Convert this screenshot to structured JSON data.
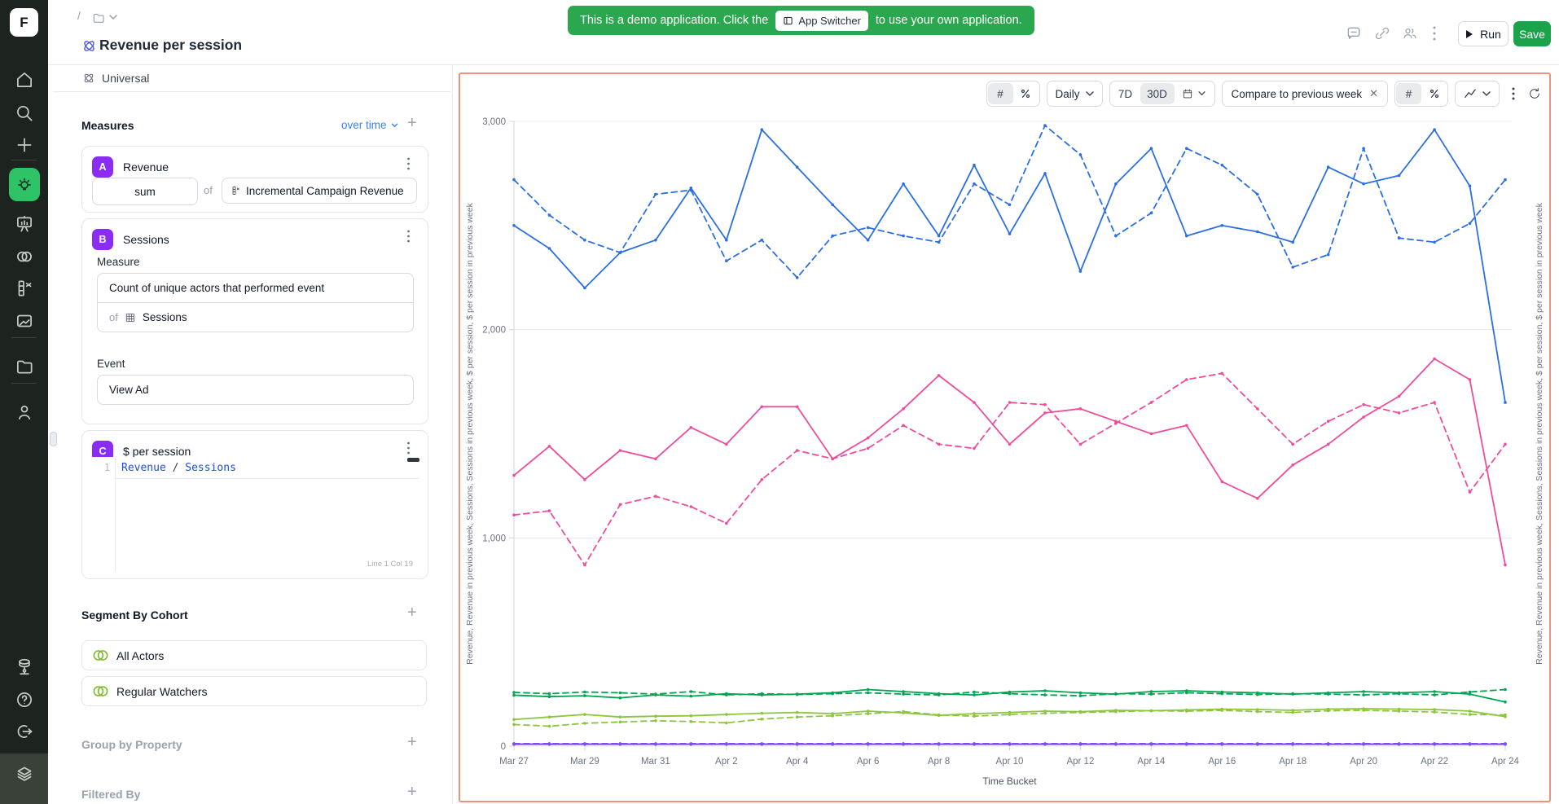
{
  "header": {
    "breadcrumb_separator": "/",
    "title": "Revenue per session",
    "banner": {
      "text_before": "This is a demo application. Click the",
      "switcher_label": "App Switcher",
      "text_after": "to use your own application."
    },
    "run_label": "Run",
    "save_label": "Save"
  },
  "sidebar": {
    "logo_letter": "F",
    "accent_green": "#2fc368",
    "active_item": "insights"
  },
  "panel": {
    "universal_label": "Universal",
    "measures_title": "Measures",
    "over_time_label": "over time",
    "card_a": {
      "badge": "A",
      "title": "Revenue",
      "aggregation": "sum",
      "of_label": "of",
      "field": "Incremental Campaign Revenue"
    },
    "card_b": {
      "badge": "B",
      "title": "Sessions",
      "measure_label": "Measure",
      "measure_value": "Count of unique actors that performed event",
      "of_label": "of",
      "dataset": "Sessions",
      "event_label": "Event",
      "event_value": "View Ad"
    },
    "card_c": {
      "badge": "C",
      "title": "$ per session",
      "line_number": "1",
      "formula_left": "Revenue",
      "formula_op": "/",
      "formula_right": "Sessions",
      "status": "Line 1 Col 19"
    },
    "segment_title": "Segment By Cohort",
    "cohorts": [
      "All Actors",
      "Regular Watchers"
    ],
    "group_by_label": "Group by Property",
    "filtered_by_label": "Filtered By"
  },
  "chart_toolbar": {
    "hash": "#",
    "interval": "Daily",
    "range_7d": "7D",
    "range_30d": "30D",
    "compare_chip": "Compare to previous week",
    "close": "×"
  },
  "chart_data": {
    "type": "line",
    "title": "",
    "xlabel": "Time Bucket",
    "ylabel": "Revenue, Revenue in previous week, Sessions, Sessions in previous week, $ per session, $ per session in previous week",
    "ylabel_right": "Revenue, Revenue in previous week, Sessions, Sessions in previous week, $ per session, $ per session in previous week",
    "ylim": [
      0,
      3000
    ],
    "grid": true,
    "legend_position": "none",
    "yticks": [
      {
        "v": 0,
        "label": "0"
      },
      {
        "v": 1000,
        "label": "1,000"
      },
      {
        "v": 2000,
        "label": "2,000"
      },
      {
        "v": 3000,
        "label": "3,000"
      }
    ],
    "x_tick_every": 2,
    "categories": [
      "Mar 27",
      "Mar 28",
      "Mar 29",
      "Mar 30",
      "Mar 31",
      "Apr 1",
      "Apr 2",
      "Apr 3",
      "Apr 4",
      "Apr 5",
      "Apr 6",
      "Apr 7",
      "Apr 8",
      "Apr 9",
      "Apr 10",
      "Apr 11",
      "Apr 12",
      "Apr 13",
      "Apr 14",
      "Apr 15",
      "Apr 16",
      "Apr 17",
      "Apr 18",
      "Apr 19",
      "Apr 20",
      "Apr 21",
      "Apr 22",
      "Apr 23",
      "Apr 24"
    ],
    "series": [
      {
        "name": "Revenue — All Actors",
        "color": "#2b6fe3",
        "style": "solid",
        "values": [
          2500,
          2390,
          2200,
          2370,
          2430,
          2680,
          2430,
          2960,
          2780,
          2600,
          2430,
          2700,
          2450,
          2790,
          2460,
          2750,
          2280,
          2700,
          2870,
          2450,
          2500,
          2470,
          2420,
          2780,
          2700,
          2740,
          2960,
          2690,
          1650
        ]
      },
      {
        "name": "Revenue in previous week — All Actors",
        "color": "#2b6fe3",
        "style": "dashed",
        "values": [
          2720,
          2550,
          2430,
          2370,
          2650,
          2670,
          2330,
          2430,
          2250,
          2450,
          2490,
          2450,
          2420,
          2700,
          2600,
          2980,
          2840,
          2450,
          2560,
          2870,
          2790,
          2650,
          2300,
          2360,
          2870,
          2440,
          2420,
          2510,
          2720
        ]
      },
      {
        "name": "Revenue — Regular Watchers",
        "color": "#ee4d9b",
        "style": "solid",
        "values": [
          1300,
          1440,
          1280,
          1420,
          1380,
          1530,
          1450,
          1630,
          1630,
          1380,
          1480,
          1620,
          1780,
          1650,
          1450,
          1600,
          1620,
          1560,
          1500,
          1540,
          1270,
          1190,
          1350,
          1450,
          1580,
          1680,
          1860,
          1760,
          870
        ]
      },
      {
        "name": "Revenue in previous week — Regular Watchers",
        "color": "#ee4d9b",
        "style": "dashed",
        "values": [
          1110,
          1130,
          870,
          1160,
          1200,
          1150,
          1070,
          1280,
          1420,
          1380,
          1430,
          1540,
          1450,
          1430,
          1650,
          1640,
          1450,
          1550,
          1650,
          1760,
          1790,
          1620,
          1450,
          1560,
          1640,
          1600,
          1650,
          1220,
          1450
        ]
      },
      {
        "name": "Sessions — All Actors",
        "color": "#00a551",
        "style": "solid",
        "values": [
          245,
          238,
          242,
          232,
          246,
          240,
          252,
          246,
          250,
          256,
          272,
          262,
          252,
          246,
          260,
          266,
          256,
          250,
          262,
          266,
          260,
          256,
          250,
          256,
          262,
          256,
          262,
          250,
          212
        ]
      },
      {
        "name": "Sessions in previous week — All Actors",
        "color": "#00a551",
        "style": "dashed",
        "values": [
          258,
          252,
          260,
          256,
          250,
          262,
          246,
          252,
          248,
          252,
          256,
          250,
          246,
          260,
          252,
          246,
          242,
          252,
          250,
          256,
          252,
          248,
          252,
          250,
          246,
          252,
          246,
          260,
          272
        ]
      },
      {
        "name": "Sessions — Regular Watchers",
        "color": "#8cc63f",
        "style": "solid",
        "values": [
          128,
          140,
          152,
          140,
          144,
          146,
          152,
          158,
          162,
          156,
          168,
          160,
          148,
          156,
          162,
          168,
          166,
          172,
          170,
          174,
          178,
          176,
          172,
          178,
          180,
          178,
          176,
          168,
          142
        ]
      },
      {
        "name": "Sessions in previous week — Regular Watchers",
        "color": "#8cc63f",
        "style": "dashed",
        "values": [
          104,
          96,
          110,
          116,
          122,
          118,
          112,
          130,
          140,
          146,
          156,
          166,
          150,
          144,
          152,
          158,
          162,
          166,
          170,
          168,
          172,
          166,
          162,
          170,
          172,
          168,
          164,
          152,
          150
        ]
      },
      {
        "name": "$ per session — All Actors",
        "color": "#7d4df2",
        "style": "solid",
        "values": [
          10,
          10,
          10,
          10,
          10,
          10,
          10,
          10,
          10,
          10,
          10,
          10,
          10,
          10,
          10,
          10,
          10,
          10,
          10,
          10,
          10,
          10,
          10,
          10,
          10,
          10,
          10,
          10,
          10
        ]
      },
      {
        "name": "$ per session in previous week — All Actors",
        "color": "#7d4df2",
        "style": "dashed",
        "values": [
          12,
          12,
          12,
          12,
          12,
          12,
          12,
          12,
          12,
          12,
          12,
          12,
          12,
          12,
          12,
          12,
          12,
          12,
          12,
          12,
          12,
          12,
          12,
          12,
          12,
          12,
          12,
          12,
          12
        ]
      },
      {
        "name": "$ per session — Regular Watchers",
        "color": "#7d4df2",
        "style": "solid",
        "values": [
          9,
          9,
          9,
          9,
          9,
          9,
          9,
          9,
          9,
          9,
          9,
          9,
          9,
          9,
          9,
          9,
          9,
          9,
          9,
          9,
          9,
          9,
          9,
          9,
          9,
          9,
          9,
          9,
          9
        ]
      },
      {
        "name": "$ per session in previous week — Regular Watchers",
        "color": "#7d4df2",
        "style": "dashed",
        "values": [
          11,
          11,
          11,
          11,
          11,
          11,
          11,
          11,
          11,
          11,
          11,
          11,
          11,
          11,
          11,
          11,
          11,
          11,
          11,
          11,
          11,
          11,
          11,
          11,
          11,
          11,
          11,
          11,
          11
        ]
      }
    ]
  }
}
